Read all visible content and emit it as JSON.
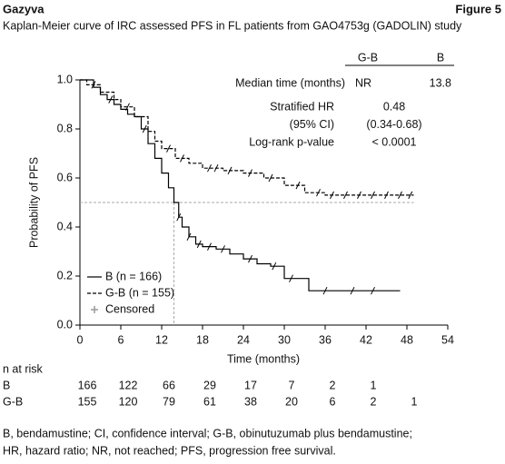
{
  "header": {
    "left": "Gazyva",
    "right": "Figure 5"
  },
  "chart_data": {
    "type": "line",
    "step": true,
    "title": "Kaplan-Meier curve of IRC assessed PFS in FL patients from GAO4753g (GADOLIN) study",
    "x_label": "Time (months)",
    "y_label": "Probability of PFS",
    "xlim": [
      0,
      54
    ],
    "xticks": [
      0,
      6,
      12,
      18,
      24,
      30,
      36,
      42,
      48,
      54
    ],
    "ylim": [
      0,
      1
    ],
    "yticks": [
      {
        "value": 0,
        "label": "0.0"
      },
      0.2,
      0.4,
      0.6,
      0.8,
      {
        "value": 1,
        "label": "1.0"
      }
    ],
    "series": [
      {
        "name": "B (n = 166)",
        "color": "#000000",
        "dash": false,
        "x": [
          0,
          2,
          3,
          4,
          5,
          6,
          7,
          8,
          9,
          10,
          11,
          12,
          13,
          13.8,
          14.5,
          15,
          16,
          17,
          18,
          20,
          22,
          24,
          26,
          28,
          30,
          33.6,
          47
        ],
        "values": [
          1.0,
          0.97,
          0.94,
          0.92,
          0.9,
          0.88,
          0.86,
          0.85,
          0.8,
          0.74,
          0.68,
          0.62,
          0.56,
          0.5,
          0.44,
          0.4,
          0.36,
          0.33,
          0.32,
          0.31,
          0.29,
          0.27,
          0.25,
          0.24,
          0.19,
          0.14,
          0.14
        ],
        "censored": {
          "x": [
            4.5,
            9.5,
            14.5,
            16,
            17.5,
            19,
            21,
            25,
            28.5,
            31,
            36,
            40,
            43
          ],
          "values": [
            0.92,
            0.8,
            0.44,
            0.36,
            0.33,
            0.32,
            0.31,
            0.27,
            0.24,
            0.19,
            0.14,
            0.14,
            0.14
          ]
        }
      },
      {
        "name": "G-B (n = 155)",
        "color": "#000000",
        "dash": true,
        "x": [
          0,
          1,
          3,
          5,
          6,
          8,
          10,
          11,
          12,
          14,
          16,
          18,
          21,
          24,
          27,
          30,
          33,
          36,
          49
        ],
        "values": [
          1.0,
          0.98,
          0.95,
          0.92,
          0.89,
          0.85,
          0.79,
          0.75,
          0.72,
          0.68,
          0.66,
          0.64,
          0.63,
          0.62,
          0.6,
          0.57,
          0.54,
          0.53,
          0.53
        ],
        "censored": {
          "x": [
            2,
            7,
            13,
            15,
            19,
            20,
            22,
            25,
            28,
            32,
            35,
            37,
            39,
            41,
            43,
            45,
            47,
            48.5
          ],
          "values": [
            0.98,
            0.89,
            0.72,
            0.68,
            0.64,
            0.64,
            0.63,
            0.62,
            0.6,
            0.57,
            0.54,
            0.53,
            0.53,
            0.53,
            0.53,
            0.53,
            0.53,
            0.53
          ]
        }
      }
    ],
    "censor_legend": "Censored",
    "censor_color": "#999999",
    "median_line": {
      "y": 0.5,
      "x": 13.8,
      "color": "#aaaaaa"
    },
    "stats_table": {
      "header": [
        "G-B",
        "B"
      ],
      "rows": [
        [
          "Median time (months)",
          "NR",
          "13.8"
        ],
        [
          "Stratified HR",
          "0.48"
        ],
        [
          "(95% CI)",
          "(0.34-0.68)"
        ],
        [
          "Log-rank p-value",
          "< 0.0001"
        ]
      ]
    },
    "risk_table": {
      "title": "n at risk",
      "rows": [
        {
          "name": "B",
          "values": [
            166,
            122,
            66,
            29,
            17,
            7,
            2,
            1
          ]
        },
        {
          "name": "G-B",
          "values": [
            155,
            120,
            79,
            61,
            38,
            20,
            6,
            2,
            1
          ]
        }
      ]
    }
  },
  "footnote": [
    "B, bendamustine; CI, confidence interval; G-B, obinutuzumab plus bendamustine;",
    "HR, hazard ratio; NR, not reached; PFS, progression free survival."
  ]
}
